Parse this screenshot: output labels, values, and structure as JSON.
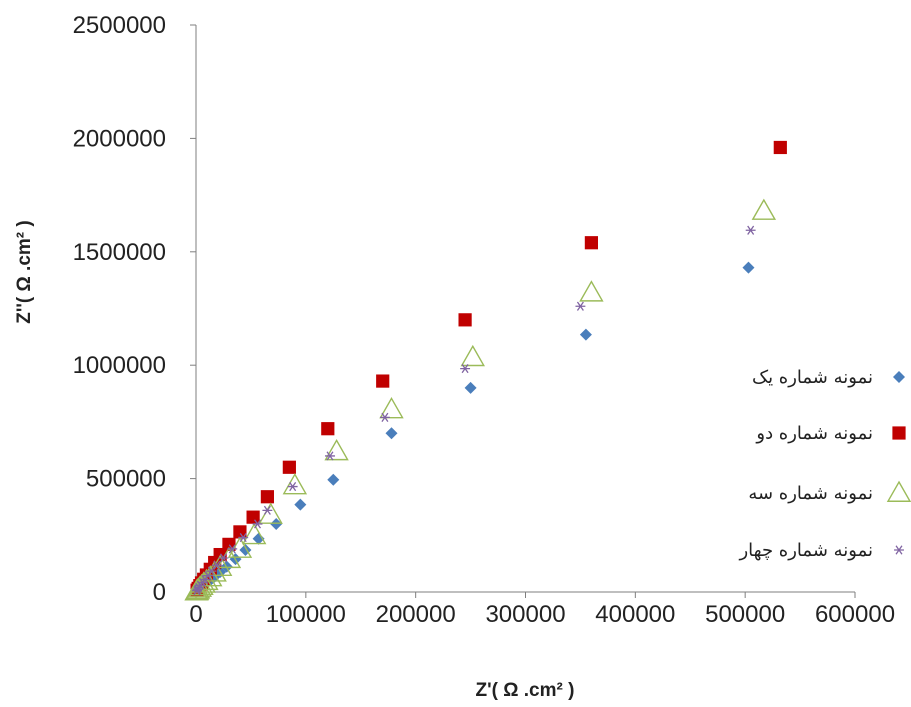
{
  "chart_data": {
    "type": "scatter",
    "xlabel": "Z'( Ω .cm² )",
    "ylabel": "Z''( Ω .cm² )",
    "xlim": [
      0,
      600000
    ],
    "ylim": [
      0,
      2500000
    ],
    "x_ticks": [
      "0",
      "100000",
      "200000",
      "300000",
      "400000",
      "500000",
      "600000"
    ],
    "y_ticks": [
      "0",
      "500000",
      "1000000",
      "1500000",
      "2000000",
      "2500000"
    ],
    "grid": false,
    "legend_position": "right",
    "series": [
      {
        "name": "نمونه شماره یک",
        "marker": "diamond",
        "color": "#4A7EBB",
        "points": [
          [
            1000,
            4000
          ],
          [
            2000,
            8000
          ],
          [
            3500,
            14000
          ],
          [
            5000,
            20000
          ],
          [
            7000,
            28000
          ],
          [
            9500,
            38000
          ],
          [
            13000,
            52000
          ],
          [
            17000,
            68000
          ],
          [
            22000,
            88000
          ],
          [
            28000,
            112000
          ],
          [
            36000,
            145000
          ],
          [
            45000,
            185000
          ],
          [
            57000,
            235000
          ],
          [
            73000,
            300000
          ],
          [
            95000,
            385000
          ],
          [
            125000,
            495000
          ],
          [
            178000,
            700000
          ],
          [
            250000,
            900000
          ],
          [
            355000,
            1135000
          ],
          [
            503000,
            1430000
          ]
        ]
      },
      {
        "name": "نمونه شماره دو",
        "marker": "square",
        "color": "#C00000",
        "points": [
          [
            1000,
            8000
          ],
          [
            2000,
            16000
          ],
          [
            3500,
            28000
          ],
          [
            5000,
            40000
          ],
          [
            7000,
            56000
          ],
          [
            9500,
            75000
          ],
          [
            13000,
            100000
          ],
          [
            17000,
            130000
          ],
          [
            22000,
            165000
          ],
          [
            30000,
            210000
          ],
          [
            40000,
            265000
          ],
          [
            52000,
            330000
          ],
          [
            65000,
            420000
          ],
          [
            85000,
            550000
          ],
          [
            120000,
            720000
          ],
          [
            170000,
            930000
          ],
          [
            245000,
            1200000
          ],
          [
            360000,
            1540000
          ],
          [
            532000,
            1960000
          ]
        ]
      },
      {
        "name": "نمونه شماره سه",
        "marker": "triangle",
        "color": "#9BBB59",
        "points": [
          [
            500,
            2000
          ],
          [
            1000,
            5000
          ],
          [
            2000,
            10000
          ],
          [
            3500,
            18000
          ],
          [
            5000,
            26000
          ],
          [
            7000,
            36000
          ],
          [
            9500,
            48000
          ],
          [
            13000,
            64000
          ],
          [
            17000,
            85000
          ],
          [
            22000,
            110000
          ],
          [
            30000,
            145000
          ],
          [
            40000,
            190000
          ],
          [
            53000,
            250000
          ],
          [
            68000,
            340000
          ],
          [
            90000,
            470000
          ],
          [
            128000,
            620000
          ],
          [
            178000,
            805000
          ],
          [
            252000,
            1035000
          ],
          [
            360000,
            1320000
          ],
          [
            517000,
            1680000
          ]
        ]
      },
      {
        "name": "نمونه شماره چهار",
        "marker": "star",
        "color": "#8064A2",
        "points": [
          [
            800,
            6000
          ],
          [
            1500,
            12000
          ],
          [
            2500,
            20000
          ],
          [
            4000,
            30000
          ],
          [
            6000,
            42000
          ],
          [
            8000,
            55000
          ],
          [
            11000,
            72000
          ],
          [
            14000,
            92000
          ],
          [
            19000,
            118000
          ],
          [
            25000,
            150000
          ],
          [
            33000,
            190000
          ],
          [
            43000,
            240000
          ],
          [
            56000,
            300000
          ],
          [
            65000,
            360000
          ],
          [
            88000,
            465000
          ],
          [
            122000,
            600000
          ],
          [
            172000,
            770000
          ],
          [
            245000,
            985000
          ],
          [
            350000,
            1260000
          ],
          [
            505000,
            1595000
          ]
        ]
      }
    ]
  }
}
